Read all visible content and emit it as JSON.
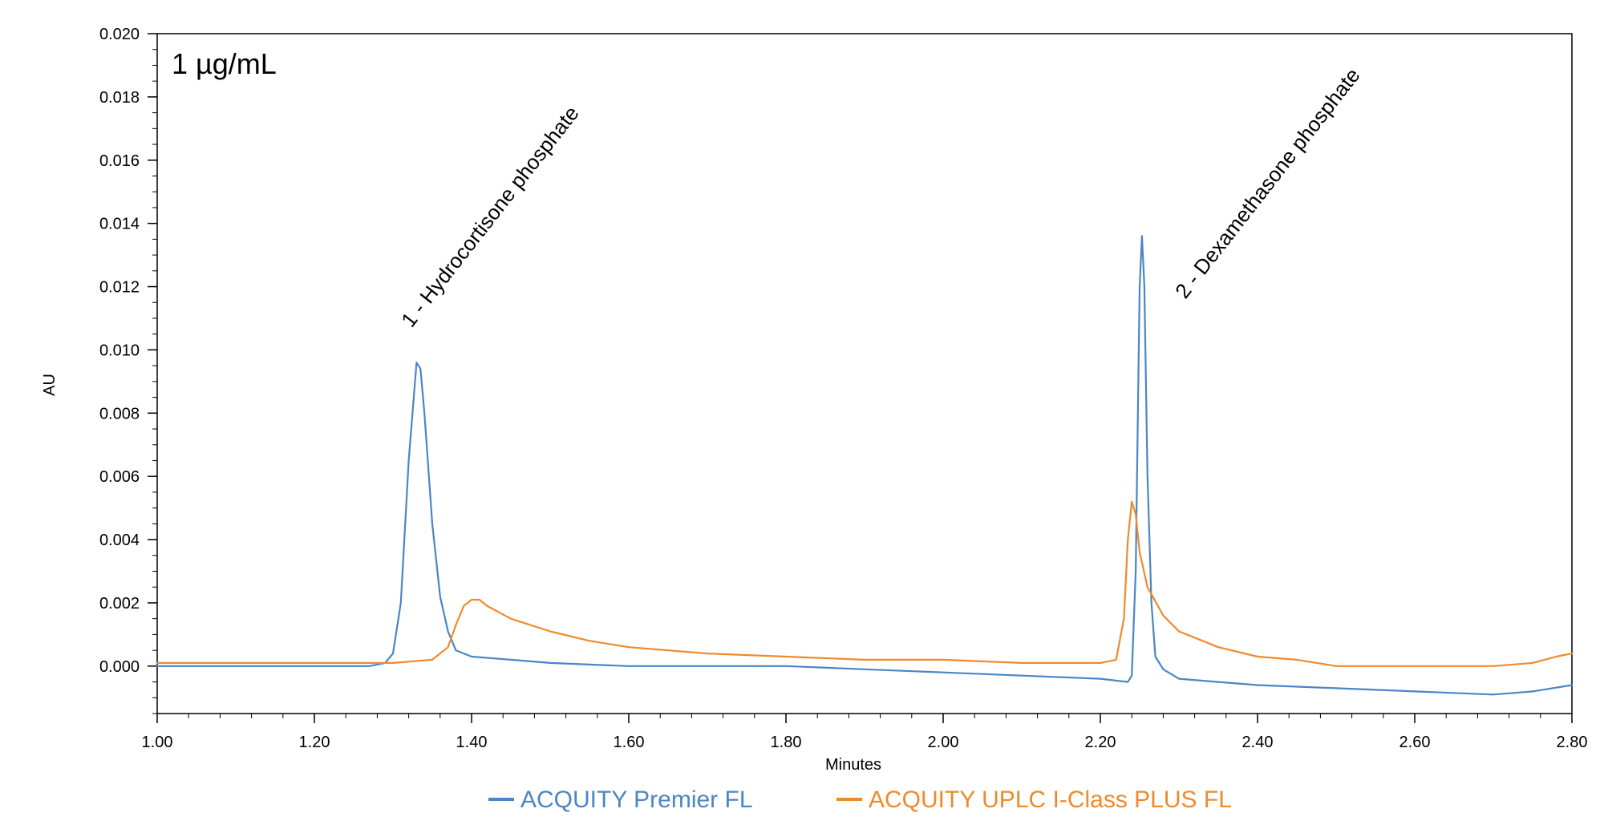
{
  "chart_data": {
    "type": "line",
    "title": "1 µg/mL",
    "xlabel": "Minutes",
    "ylabel": "AU",
    "xlim": [
      1.0,
      2.8
    ],
    "ylim": [
      -0.0015,
      0.02
    ],
    "x_ticks": [
      "1.00",
      "1.20",
      "1.40",
      "1.60",
      "1.80",
      "2.00",
      "2.20",
      "2.40",
      "2.60",
      "2.80"
    ],
    "y_ticks": [
      "0.000",
      "0.002",
      "0.004",
      "0.006",
      "0.008",
      "0.010",
      "0.012",
      "0.014",
      "0.016",
      "0.018",
      "0.020"
    ],
    "grid": false,
    "legend_position": "bottom-center",
    "annotations": [
      {
        "text": "1 - Hydrocortisone phosphate",
        "x": 1.33,
        "y": 0.0105
      },
      {
        "text": "2 - Dexamethasone phosphate",
        "x": 2.3,
        "y": 0.0117
      }
    ],
    "series": [
      {
        "name": "ACQUITY Premier FL",
        "color": "#4a86c5",
        "points": [
          [
            1.0,
            0.0
          ],
          [
            1.1,
            0.0
          ],
          [
            1.2,
            0.0
          ],
          [
            1.27,
            0.0
          ],
          [
            1.29,
            0.0001
          ],
          [
            1.3,
            0.0004
          ],
          [
            1.31,
            0.002
          ],
          [
            1.32,
            0.0065
          ],
          [
            1.33,
            0.0096
          ],
          [
            1.335,
            0.0094
          ],
          [
            1.34,
            0.008
          ],
          [
            1.35,
            0.0045
          ],
          [
            1.36,
            0.0022
          ],
          [
            1.37,
            0.0011
          ],
          [
            1.38,
            0.0005
          ],
          [
            1.4,
            0.0003
          ],
          [
            1.45,
            0.0002
          ],
          [
            1.5,
            0.0001
          ],
          [
            1.6,
            0.0
          ],
          [
            1.7,
            0.0
          ],
          [
            1.8,
            0.0
          ],
          [
            1.9,
            -0.0001
          ],
          [
            2.0,
            -0.0002
          ],
          [
            2.1,
            -0.0003
          ],
          [
            2.2,
            -0.0004
          ],
          [
            2.235,
            -0.0005
          ],
          [
            2.24,
            -0.0003
          ],
          [
            2.245,
            0.003
          ],
          [
            2.25,
            0.012
          ],
          [
            2.253,
            0.0136
          ],
          [
            2.256,
            0.012
          ],
          [
            2.26,
            0.006
          ],
          [
            2.265,
            0.002
          ],
          [
            2.27,
            0.0003
          ],
          [
            2.28,
            -0.0001
          ],
          [
            2.3,
            -0.0004
          ],
          [
            2.35,
            -0.0005
          ],
          [
            2.4,
            -0.0006
          ],
          [
            2.5,
            -0.0007
          ],
          [
            2.6,
            -0.0008
          ],
          [
            2.7,
            -0.0009
          ],
          [
            2.75,
            -0.0008
          ],
          [
            2.8,
            -0.0006
          ]
        ]
      },
      {
        "name": "ACQUITY UPLC I-Class PLUS FL",
        "color": "#ef8a2c",
        "points": [
          [
            1.0,
            0.0001
          ],
          [
            1.1,
            0.0001
          ],
          [
            1.2,
            0.0001
          ],
          [
            1.3,
            0.0001
          ],
          [
            1.35,
            0.0002
          ],
          [
            1.37,
            0.0006
          ],
          [
            1.38,
            0.0013
          ],
          [
            1.39,
            0.0019
          ],
          [
            1.4,
            0.0021
          ],
          [
            1.41,
            0.0021
          ],
          [
            1.42,
            0.0019
          ],
          [
            1.45,
            0.0015
          ],
          [
            1.5,
            0.0011
          ],
          [
            1.55,
            0.0008
          ],
          [
            1.6,
            0.0006
          ],
          [
            1.7,
            0.0004
          ],
          [
            1.8,
            0.0003
          ],
          [
            1.9,
            0.0002
          ],
          [
            2.0,
            0.0002
          ],
          [
            2.1,
            0.0001
          ],
          [
            2.2,
            0.0001
          ],
          [
            2.22,
            0.0002
          ],
          [
            2.23,
            0.0015
          ],
          [
            2.235,
            0.004
          ],
          [
            2.24,
            0.0052
          ],
          [
            2.245,
            0.0048
          ],
          [
            2.25,
            0.0036
          ],
          [
            2.26,
            0.0025
          ],
          [
            2.28,
            0.0016
          ],
          [
            2.3,
            0.0011
          ],
          [
            2.35,
            0.0006
          ],
          [
            2.4,
            0.0003
          ],
          [
            2.45,
            0.0002
          ],
          [
            2.5,
            0.0
          ],
          [
            2.6,
            0.0
          ],
          [
            2.7,
            0.0
          ],
          [
            2.75,
            0.0001
          ],
          [
            2.78,
            0.0003
          ],
          [
            2.8,
            0.0004
          ]
        ]
      }
    ]
  }
}
